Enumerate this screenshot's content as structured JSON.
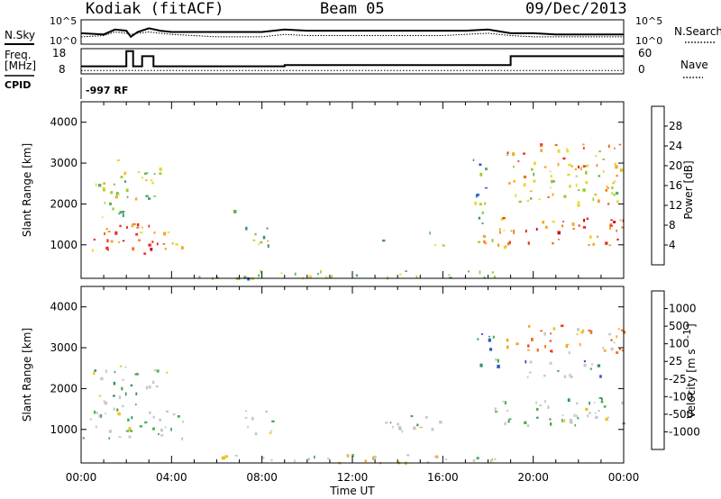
{
  "header": {
    "station": "Kodiak (fitACF)",
    "beam": "Beam 05",
    "date": "09/Dec/2013"
  },
  "left_labels": {
    "nsky": "N.Sky",
    "freq": "Freq.",
    "mhz": "[MHz]",
    "cpid": "CPID"
  },
  "right_labels": {
    "nsearch": "N.Search",
    "nave": "Nave"
  },
  "noise_panel": {
    "ytick_top": "10^5",
    "ytick_bottom": "10^0",
    "rtick_top": "10^5",
    "rtick_bottom": "10^0"
  },
  "freq_panel": {
    "ytick_top": "18",
    "ytick_bottom": "8",
    "rtick_top": "60",
    "rtick_bottom": "0"
  },
  "cpid_text": "-997 RF",
  "chart_data": [
    {
      "type": "line",
      "panel": "noise",
      "ylabel_left": "N.Sky",
      "ylabel_right": "N.Search",
      "x_hours": [
        0,
        1,
        1.5,
        2,
        2.2,
        2.5,
        3,
        3.5,
        4,
        5,
        6,
        7,
        8,
        9,
        10,
        11,
        12,
        13,
        14,
        15,
        16,
        17,
        18,
        19,
        20,
        21,
        22,
        23,
        24
      ],
      "nsky_level": [
        0.45,
        0.4,
        0.6,
        0.55,
        0.3,
        0.5,
        0.65,
        0.55,
        0.5,
        0.5,
        0.5,
        0.5,
        0.5,
        0.6,
        0.55,
        0.55,
        0.55,
        0.55,
        0.55,
        0.55,
        0.55,
        0.55,
        0.6,
        0.45,
        0.45,
        0.4,
        0.4,
        0.4,
        0.4
      ],
      "nsearch_level": [
        0.3,
        0.35,
        0.5,
        0.45,
        0.4,
        0.45,
        0.5,
        0.45,
        0.4,
        0.35,
        0.3,
        0.3,
        0.3,
        0.4,
        0.35,
        0.35,
        0.35,
        0.35,
        0.35,
        0.35,
        0.35,
        0.4,
        0.45,
        0.35,
        0.3,
        0.3,
        0.3,
        0.3,
        0.3
      ]
    },
    {
      "type": "line",
      "panel": "frequency",
      "ylabel": "Freq. [MHz]",
      "ylabel_right": "Nave",
      "ylim": [
        8,
        18
      ],
      "freq_steps": [
        {
          "x0": 0,
          "x1": 2,
          "y": 11
        },
        {
          "x0": 2,
          "x1": 2.3,
          "y": 17
        },
        {
          "x0": 2.3,
          "x1": 2.7,
          "y": 11
        },
        {
          "x0": 2.7,
          "x1": 3.2,
          "y": 15
        },
        {
          "x0": 3.2,
          "x1": 9,
          "y": 11
        },
        {
          "x0": 9,
          "x1": 19,
          "y": 11.5
        },
        {
          "x0": 19,
          "x1": 24,
          "y": 15
        }
      ],
      "nave_level": 8
    },
    {
      "type": "heatmap",
      "panel": "power",
      "ylabel": "Slant Range [km]",
      "xlabel": "",
      "xlim": [
        0,
        24
      ],
      "ylim": [
        180,
        4500
      ],
      "yticks": [
        1000,
        2000,
        3000,
        4000
      ],
      "colorbar_label": "Power [dB]",
      "colorbar_ticks": [
        "4",
        "8",
        "12",
        "16",
        "20",
        "24",
        "28"
      ],
      "colorbar_colors": [
        "#1a1aff",
        "#2f5fd0",
        "#3f8f8a",
        "#5ab05a",
        "#9acd32",
        "#e8d830",
        "#f5a623",
        "#f07020",
        "#e83020",
        "#d00000"
      ],
      "blobs": [
        {
          "t0": 0.05,
          "t1": 4.5,
          "r0": 800,
          "r1": 1550,
          "lvl": 7
        },
        {
          "t0": 0.5,
          "t1": 2.0,
          "r0": 1550,
          "r1": 2600,
          "lvl": 4
        },
        {
          "t0": 1.5,
          "t1": 3.5,
          "r0": 2100,
          "r1": 3100,
          "lvl": 4
        },
        {
          "t0": 7.2,
          "t1": 8.5,
          "r0": 900,
          "r1": 1500,
          "lvl": 4
        },
        {
          "t0": 6.4,
          "t1": 7.2,
          "r0": 1650,
          "r1": 1900,
          "lvl": 3
        },
        {
          "t0": 15.3,
          "t1": 16.0,
          "r0": 950,
          "r1": 1400,
          "lvl": 4
        },
        {
          "t0": 13.2,
          "t1": 13.6,
          "r0": 950,
          "r1": 1150,
          "lvl": 3
        },
        {
          "t0": 17.3,
          "t1": 18.0,
          "r0": 1500,
          "r1": 3200,
          "lvl": 3
        },
        {
          "t0": 17.5,
          "t1": 19.0,
          "r0": 900,
          "r1": 1500,
          "lvl": 5
        },
        {
          "t0": 18.5,
          "t1": 24.0,
          "r0": 1000,
          "r1": 1700,
          "lvl": 7
        },
        {
          "t0": 18.8,
          "t1": 24.0,
          "r0": 2000,
          "r1": 2900,
          "lvl": 5
        },
        {
          "t0": 18.8,
          "t1": 24.0,
          "r0": 2900,
          "r1": 3500,
          "lvl": 6
        },
        {
          "t0": 5.0,
          "t1": 18.5,
          "r0": 200,
          "r1": 400,
          "lvl": 3
        }
      ]
    },
    {
      "type": "heatmap",
      "panel": "velocity",
      "ylabel": "Slant Range [km]",
      "xlabel": "Time UT",
      "xlim": [
        0,
        24
      ],
      "ylim": [
        180,
        4500
      ],
      "yticks": [
        1000,
        2000,
        3000,
        4000
      ],
      "xtick_labels": [
        "00:00",
        "04:00",
        "08:00",
        "12:00",
        "16:00",
        "20:00",
        "00:00"
      ],
      "colorbar_label": "Velocity [m s",
      "colorbar_label_sup": "-1",
      "colorbar_ticks": [
        "1000",
        "500",
        "100",
        "25",
        "-25",
        "-100",
        "-500",
        "-1000"
      ],
      "colorbar_colors": [
        "#1a1aff",
        "#3555c8",
        "#2f8f6f",
        "#49b049",
        "#c8c8c8",
        "#c8c8c8",
        "#f0c020",
        "#f5a623",
        "#f07020",
        "#e84020",
        "#d00000"
      ],
      "blobs": [
        {
          "t0": 0.05,
          "t1": 4.5,
          "r0": 800,
          "r1": 1550,
          "lvl": 4
        },
        {
          "t0": 0.5,
          "t1": 2.5,
          "r0": 1550,
          "r1": 2600,
          "lvl": 4
        },
        {
          "t0": 2.5,
          "t1": 3.8,
          "r0": 2000,
          "r1": 2500,
          "lvl": 4
        },
        {
          "t0": 7.2,
          "t1": 8.5,
          "r0": 900,
          "r1": 1500,
          "lvl": 4
        },
        {
          "t0": 13.2,
          "t1": 16.0,
          "r0": 950,
          "r1": 1400,
          "lvl": 4
        },
        {
          "t0": 18.2,
          "t1": 24.0,
          "r0": 1100,
          "r1": 1800,
          "lvl": 4
        },
        {
          "t0": 18.8,
          "t1": 24.0,
          "r0": 2900,
          "r1": 3600,
          "lvl": 7
        },
        {
          "t0": 19.5,
          "t1": 23.0,
          "r0": 2300,
          "r1": 2700,
          "lvl": 3
        },
        {
          "t0": 17.5,
          "t1": 18.5,
          "r0": 2500,
          "r1": 3500,
          "lvl": 2
        },
        {
          "t0": 5.0,
          "t1": 18.5,
          "r0": 200,
          "r1": 400,
          "lvl": 5
        }
      ]
    }
  ]
}
